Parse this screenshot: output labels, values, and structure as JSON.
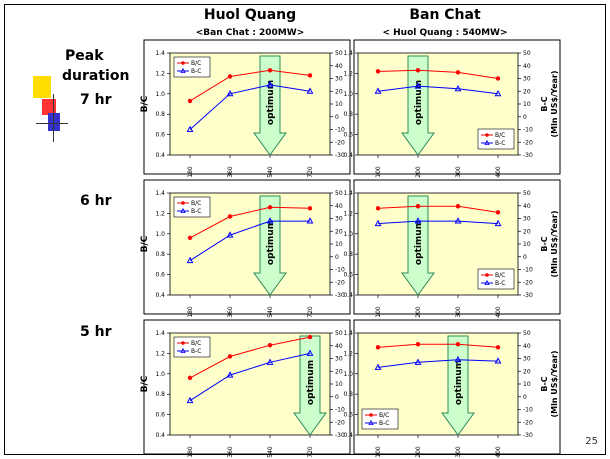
{
  "page": {
    "col1_title": "Huol Quang",
    "col1_sub": "<Ban Chat : 200MW>",
    "col2_title": "Ban Chat",
    "col2_sub": "< Huol Quang : 540MW>",
    "peak_line1": "Peak",
    "peak_line2": "duration",
    "row_labels": [
      "7 hr",
      "6 hr",
      "5 hr"
    ],
    "page_number": "25",
    "optimum_label": "optimum",
    "y1_label": "B/C",
    "y2_label": "B-C",
    "y2_unit": "(Mln US$/Year)"
  },
  "colors": {
    "plot_bg": "#ffffcc",
    "bc_series": "#ff0000",
    "bmc_series": "#0000ff",
    "arrow_fill": "#ccffcc",
    "arrow_stroke": "#2e8b57",
    "deco_yellow": "#ffdd00",
    "deco_red": "#ff3333",
    "deco_blue": "#3333cc"
  },
  "chart_data": [
    {
      "type": "line",
      "row": "7 hr",
      "plant": "Huol Quang",
      "categories": [
        "180",
        "360",
        "540",
        "720"
      ],
      "optimum": "540",
      "ylim_left": [
        0.4,
        1.4
      ],
      "ylim_right": [
        -30,
        50
      ],
      "legend": "top-left",
      "grid": false,
      "series": [
        {
          "name": "B/C",
          "axis": "left",
          "values": [
            0.93,
            1.17,
            1.23,
            1.18
          ]
        },
        {
          "name": "B-C",
          "axis": "right",
          "values": [
            -10,
            18,
            25,
            20
          ]
        }
      ]
    },
    {
      "type": "line",
      "row": "7 hr",
      "plant": "Ban Chat",
      "categories": [
        "100",
        "200",
        "300",
        "400"
      ],
      "optimum": "200",
      "ylim_left": [
        0.4,
        1.4
      ],
      "ylim_right": [
        -30,
        50
      ],
      "legend": "bottom-right",
      "grid": false,
      "series": [
        {
          "name": "B/C",
          "axis": "left",
          "values": [
            1.22,
            1.23,
            1.21,
            1.15
          ]
        },
        {
          "name": "B-C",
          "axis": "right",
          "values": [
            20,
            24,
            22,
            18
          ]
        }
      ]
    },
    {
      "type": "line",
      "row": "6 hr",
      "plant": "Huol Quang",
      "categories": [
        "180",
        "360",
        "540",
        "720"
      ],
      "optimum": "540",
      "ylim_left": [
        0.4,
        1.4
      ],
      "ylim_right": [
        -30,
        50
      ],
      "legend": "top-left",
      "grid": false,
      "series": [
        {
          "name": "B/C",
          "axis": "left",
          "values": [
            0.96,
            1.17,
            1.26,
            1.25
          ]
        },
        {
          "name": "B-C",
          "axis": "right",
          "values": [
            -3,
            17,
            28,
            28
          ]
        }
      ]
    },
    {
      "type": "line",
      "row": "6 hr",
      "plant": "Ban Chat",
      "categories": [
        "100",
        "200",
        "300",
        "400"
      ],
      "optimum": "200",
      "ylim_left": [
        0.4,
        1.4
      ],
      "ylim_right": [
        -30,
        50
      ],
      "legend": "bottom-right",
      "grid": false,
      "series": [
        {
          "name": "B/C",
          "axis": "left",
          "values": [
            1.25,
            1.27,
            1.27,
            1.21
          ]
        },
        {
          "name": "B-C",
          "axis": "right",
          "values": [
            26,
            28,
            28,
            26
          ]
        }
      ]
    },
    {
      "type": "line",
      "row": "5 hr",
      "plant": "Huol Quang",
      "categories": [
        "180",
        "360",
        "540",
        "720"
      ],
      "optimum": "720",
      "ylim_left": [
        0.4,
        1.4
      ],
      "ylim_right": [
        -30,
        50
      ],
      "legend": "top-left",
      "grid": false,
      "series": [
        {
          "name": "B/C",
          "axis": "left",
          "values": [
            0.96,
            1.17,
            1.28,
            1.36
          ]
        },
        {
          "name": "B-C",
          "axis": "right",
          "values": [
            -3,
            17,
            27,
            34
          ]
        }
      ]
    },
    {
      "type": "line",
      "row": "5 hr",
      "plant": "Ban Chat",
      "categories": [
        "100",
        "200",
        "300",
        "400"
      ],
      "optimum": "300",
      "ylim_left": [
        0.4,
        1.4
      ],
      "ylim_right": [
        -30,
        50
      ],
      "legend": "bottom-left",
      "grid": false,
      "series": [
        {
          "name": "B/C",
          "axis": "left",
          "values": [
            1.26,
            1.29,
            1.29,
            1.26
          ]
        },
        {
          "name": "B-C",
          "axis": "right",
          "values": [
            23,
            27,
            29,
            28
          ]
        }
      ]
    }
  ]
}
